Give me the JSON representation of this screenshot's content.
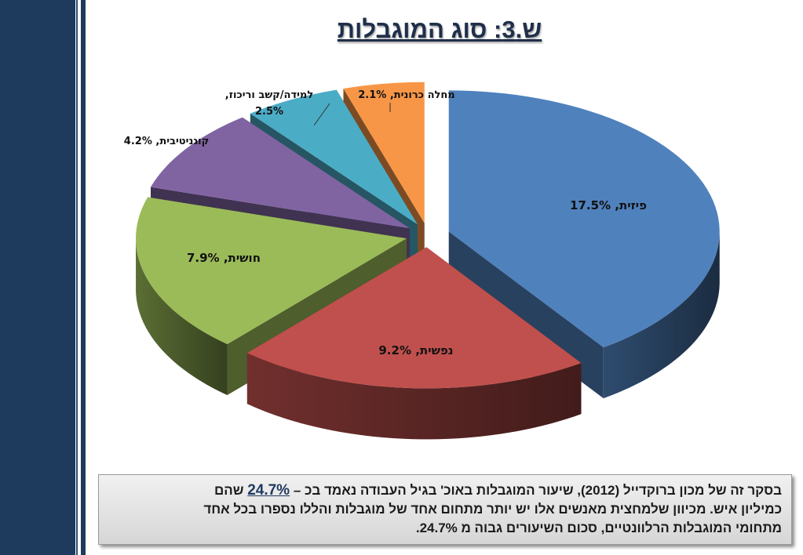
{
  "title": "ש.3: סוג המוגבלות",
  "chart_data": {
    "type": "pie",
    "title": "ש.3: סוג המוגבלות",
    "style": "3d-exploded",
    "categories": [
      "פיזית",
      "נפשית",
      "חושית",
      "קוגניטיבית",
      "למידה/קשב וריכוז",
      "מחלה כרונית"
    ],
    "values": [
      17.5,
      9.2,
      7.9,
      4.2,
      2.5,
      2.1
    ],
    "unit": "%",
    "labels": [
      "פיזית, 17.5%",
      "נפשית, 9.2%",
      "חושית, 7.9%",
      "קוגניטיבית, 4.2%",
      "למידה/קשב וריכוז,",
      "מחלה כרונית, 2.1%"
    ],
    "label_extra": "2.5%",
    "colors": [
      "#4f81bd",
      "#c0504d",
      "#9bbb59",
      "#8064a2",
      "#4bacc6",
      "#f79646"
    ]
  },
  "note": {
    "line1_pre": "בסקר זה של מכון ברוקדייל (2012), שיעור המוגבלות באוכ' בגיל העבודה נאמד בכ –",
    "line1_highlight": "24.7%",
    "line1_post": "שהם",
    "line2": "כמיליון איש.  מכיוון שלמחצית מאנשים אלו יש יותר מתחום אחד של מוגבלות והללו נספרו בכל אחד",
    "line3": "מתחומי המוגבלות הרלוונטיים, סכום השיעורים גבוה מ 24.7%."
  }
}
